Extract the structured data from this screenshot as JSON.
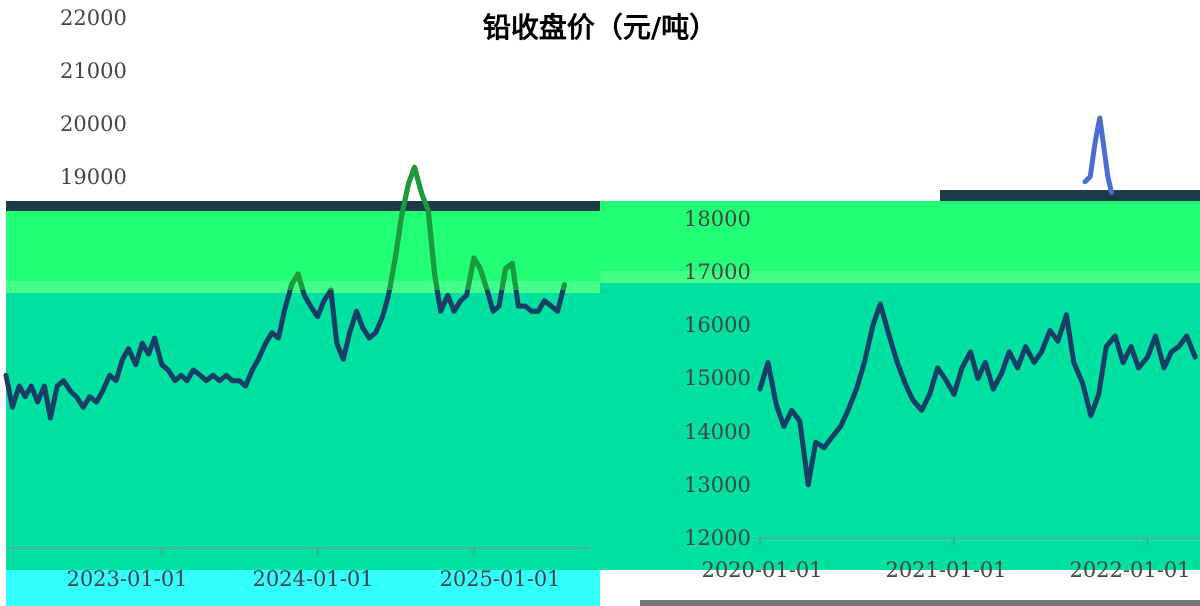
{
  "title": "铅收盘价（元/吨）",
  "colors": {
    "band_green": "#22ff77",
    "band_teal": "#00e0a0",
    "band_cyan": "#33ffff",
    "band_dark": "#1e3a48",
    "line_dark": "#173e66",
    "line_green": "#1a9b3c",
    "line_blue": "#4a6fd0",
    "bottom_bar": "#777777"
  },
  "chart_data": [
    {
      "type": "line",
      "panel": "left",
      "title": "",
      "xlabel": "",
      "ylabel": "",
      "x_ticks": [
        "2023-01-01",
        "2024-01-01",
        "2025-01-01"
      ],
      "y_ticks": [
        19000,
        20000,
        21000,
        22000
      ],
      "xlim": [
        "2022-01-01",
        "2025-09-30"
      ],
      "ylim": [
        12000,
        22500
      ],
      "grid": false,
      "series": [
        {
          "x": [
            "2022-01-01",
            "2022-01-16",
            "2022-02-01",
            "2022-02-15",
            "2022-03-01",
            "2022-03-16",
            "2022-04-01",
            "2022-04-15",
            "2022-05-01",
            "2022-05-16",
            "2022-06-01",
            "2022-06-15",
            "2022-07-01",
            "2022-07-16",
            "2022-08-01",
            "2022-08-15",
            "2022-09-01",
            "2022-09-16",
            "2022-10-01",
            "2022-10-15",
            "2022-11-01",
            "2022-11-16",
            "2022-12-01",
            "2022-12-15",
            "2023-01-01",
            "2023-01-16",
            "2023-02-01",
            "2023-02-15",
            "2023-03-01",
            "2023-03-16",
            "2023-04-01",
            "2023-04-15",
            "2023-05-01",
            "2023-05-16",
            "2023-06-01",
            "2023-06-15",
            "2023-07-01",
            "2023-07-16",
            "2023-08-01",
            "2023-08-15",
            "2023-09-01",
            "2023-09-16",
            "2023-10-01",
            "2023-10-15",
            "2023-11-01",
            "2023-11-16",
            "2023-12-01",
            "2023-12-15",
            "2024-01-01",
            "2024-01-16",
            "2024-02-01",
            "2024-02-15",
            "2024-03-01",
            "2024-03-16",
            "2024-04-01",
            "2024-04-15",
            "2024-05-01",
            "2024-05-16",
            "2024-06-01",
            "2024-06-15",
            "2024-07-01",
            "2024-07-16",
            "2024-08-01",
            "2024-08-15",
            "2024-09-01",
            "2024-09-16",
            "2024-10-01",
            "2024-10-15",
            "2024-11-01",
            "2024-11-16",
            "2024-12-01",
            "2024-12-15",
            "2025-01-01",
            "2025-01-16",
            "2025-02-01",
            "2025-02-15",
            "2025-03-01",
            "2025-03-16",
            "2025-04-01",
            "2025-04-15",
            "2025-05-01",
            "2025-05-16",
            "2025-06-01",
            "2025-06-15",
            "2025-07-01",
            "2025-07-16",
            "2025-08-01"
          ],
          "values": [
            15300,
            14700,
            15100,
            14900,
            15100,
            14800,
            15100,
            14500,
            15100,
            15200,
            15000,
            14900,
            14700,
            14900,
            14800,
            15000,
            15300,
            15200,
            15600,
            15800,
            15500,
            15900,
            15700,
            16000,
            15500,
            15400,
            15200,
            15300,
            15200,
            15400,
            15300,
            15200,
            15300,
            15200,
            15300,
            15200,
            15200,
            15100,
            15400,
            15600,
            15900,
            16100,
            16000,
            16500,
            17000,
            17200,
            16800,
            16600,
            16400,
            16700,
            16900,
            15900,
            15600,
            16100,
            16500,
            16200,
            16000,
            16100,
            16400,
            16800,
            17500,
            18300,
            18900,
            19200,
            18700,
            18400,
            17200,
            16500,
            16800,
            16500,
            16700,
            16800,
            17500,
            17300,
            16900,
            16500,
            16600,
            17300,
            17400,
            16600,
            16600,
            16500,
            16500,
            16700,
            16600,
            16500,
            17000
          ]
        }
      ]
    },
    {
      "type": "line",
      "panel": "right",
      "title": "",
      "xlabel": "",
      "ylabel": "",
      "x_ticks": [
        "2020-01-01",
        "2021-01-01",
        "2022-01-01"
      ],
      "y_ticks": [
        12000,
        13000,
        14000,
        15000,
        16000,
        17000,
        18000
      ],
      "xlim": [
        "2020-01-01",
        "2022-04-10"
      ],
      "ylim": [
        12000,
        20800
      ],
      "grid": false,
      "series": [
        {
          "x": [
            "2020-01-01",
            "2020-01-16",
            "2020-02-01",
            "2020-02-15",
            "2020-03-01",
            "2020-03-16",
            "2020-04-01",
            "2020-04-15",
            "2020-05-01",
            "2020-05-16",
            "2020-06-01",
            "2020-06-15",
            "2020-07-01",
            "2020-07-16",
            "2020-08-01",
            "2020-08-15",
            "2020-09-01",
            "2020-09-16",
            "2020-10-01",
            "2020-10-15",
            "2020-11-01",
            "2020-11-16",
            "2020-12-01",
            "2020-12-15",
            "2021-01-01",
            "2021-01-16",
            "2021-02-01",
            "2021-02-15",
            "2021-03-01",
            "2021-03-16",
            "2021-04-01",
            "2021-04-15",
            "2021-05-01",
            "2021-05-16",
            "2021-06-01",
            "2021-06-15",
            "2021-07-01",
            "2021-07-16",
            "2021-08-01",
            "2021-08-15",
            "2021-09-01",
            "2021-09-16",
            "2021-10-01",
            "2021-10-15",
            "2021-11-01",
            "2021-11-16",
            "2021-12-01",
            "2021-12-15",
            "2022-01-01",
            "2022-01-16",
            "2022-02-01",
            "2022-02-15",
            "2022-03-01",
            "2022-03-16",
            "2022-04-01"
          ],
          "values": [
            14800,
            15300,
            14500,
            14100,
            14400,
            14200,
            13000,
            13800,
            13700,
            13900,
            14100,
            14400,
            14800,
            15300,
            16000,
            16400,
            15800,
            15300,
            14900,
            14600,
            14400,
            14700,
            15200,
            15000,
            14700,
            15200,
            15500,
            15000,
            15300,
            14800,
            15100,
            15500,
            15200,
            15600,
            15300,
            15500,
            15900,
            15700,
            16200,
            15300,
            14900,
            14300,
            14700,
            15600,
            15800,
            15300,
            15600,
            15200,
            15400,
            15800,
            15200,
            15500,
            15600,
            15800,
            15400
          ],
          "spike": {
            "x": [
              "2021-09-05",
              "2021-09-15",
              "2021-09-22",
              "2021-09-27",
              "2021-10-03",
              "2021-10-10",
              "2021-10-18",
              "2021-10-25"
            ],
            "values": [
              18700,
              18800,
              19300,
              19600,
              19900,
              19400,
              18800,
              18500
            ]
          }
        }
      ]
    }
  ]
}
